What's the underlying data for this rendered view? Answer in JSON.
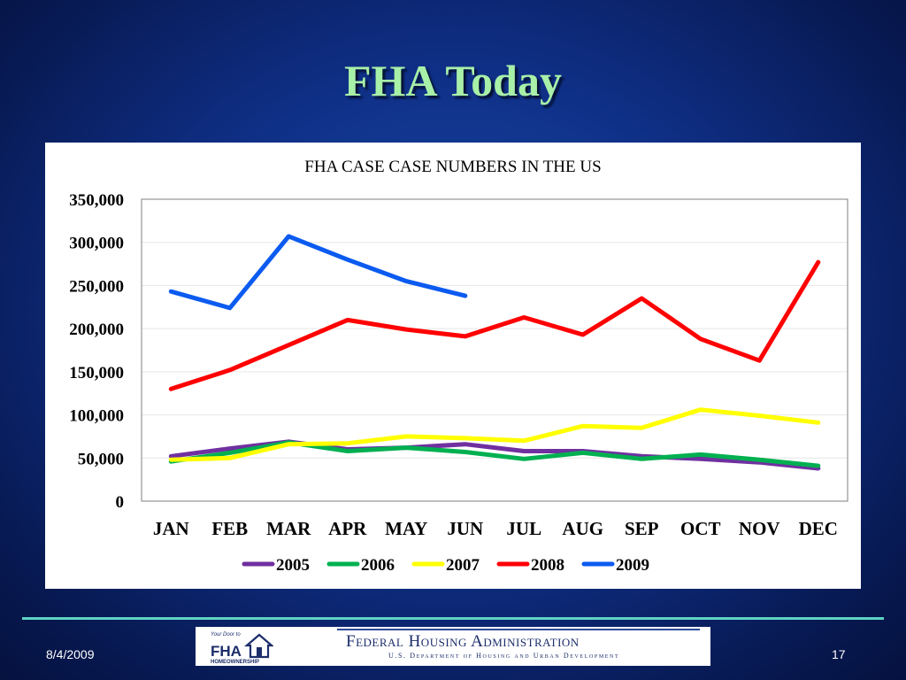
{
  "slide": {
    "title": "FHA Today",
    "date": "8/4/2009",
    "page_number": "17",
    "banner": {
      "title": "Federal Housing Administration",
      "subtitle": "U.S. Department of Housing and Urban Development",
      "logo_text_top": "Your Door to",
      "logo_text_mid": "FHA",
      "logo_text_bottom": "HOMEOWNERSHIP"
    }
  },
  "chart_data": {
    "type": "line",
    "title": "FHA CASE CASE NUMBERS IN THE US",
    "xlabel": "",
    "ylabel": "",
    "categories": [
      "JAN",
      "FEB",
      "MAR",
      "APR",
      "MAY",
      "JUN",
      "JUL",
      "AUG",
      "SEP",
      "OCT",
      "NOV",
      "DEC"
    ],
    "ylim": [
      0,
      350000
    ],
    "yticks": [
      0,
      50000,
      100000,
      150000,
      200000,
      250000,
      300000,
      350000
    ],
    "ytick_labels": [
      "0",
      "50,000",
      "100,000",
      "150,000",
      "200,000",
      "250,000",
      "300,000",
      "350,000"
    ],
    "grid": true,
    "legend_position": "bottom",
    "series": [
      {
        "name": "2005",
        "color": "#7030a0",
        "values": [
          52000,
          61000,
          69000,
          60000,
          62000,
          66000,
          58000,
          58000,
          52000,
          49000,
          45000,
          38000
        ]
      },
      {
        "name": "2006",
        "color": "#00b050",
        "values": [
          46000,
          56000,
          68000,
          58000,
          62000,
          57000,
          49000,
          56000,
          49000,
          54000,
          48000,
          41000
        ]
      },
      {
        "name": "2007",
        "color": "#ffff00",
        "values": [
          48000,
          50000,
          66000,
          67000,
          75000,
          73000,
          70000,
          87000,
          85000,
          106000,
          99000,
          91000
        ]
      },
      {
        "name": "2008",
        "color": "#ff0000",
        "values": [
          130000,
          152000,
          181000,
          210000,
          199000,
          191000,
          213000,
          193000,
          235000,
          188000,
          163000,
          277000
        ]
      },
      {
        "name": "2009",
        "color": "#0b5bf0",
        "values": [
          243000,
          224000,
          307000,
          280000,
          255000,
          238000,
          null,
          null,
          null,
          null,
          null,
          null
        ]
      }
    ]
  }
}
